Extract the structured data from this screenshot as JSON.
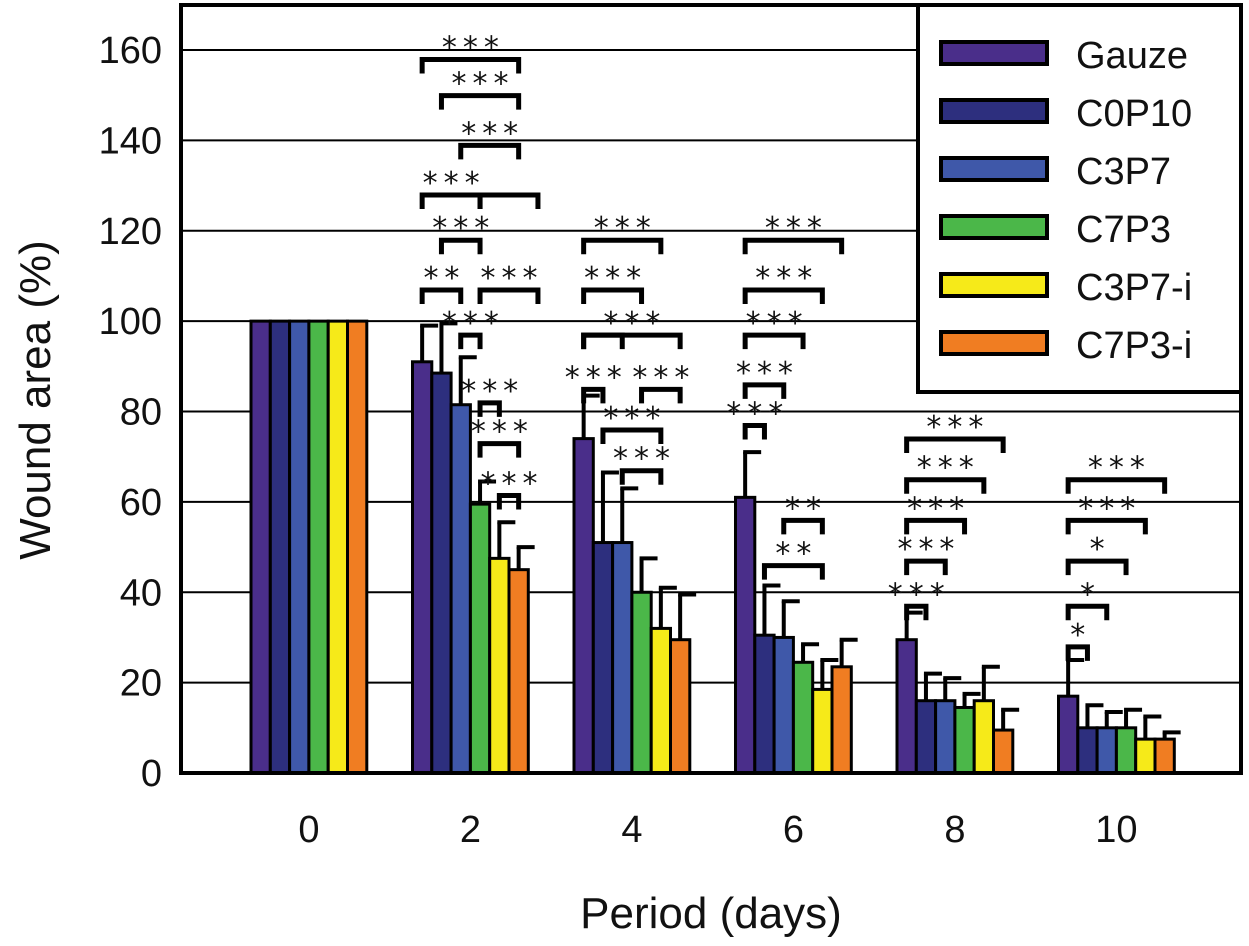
{
  "chart_data": {
    "type": "bar",
    "title": "",
    "xlabel": "Period (days)",
    "ylabel": "Wound area (%)",
    "ylim": [
      0,
      170
    ],
    "yticks": [
      0,
      20,
      40,
      60,
      80,
      100,
      120,
      140,
      160
    ],
    "grid": true,
    "legend_position": "top-right",
    "categories": [
      "0",
      "2",
      "4",
      "6",
      "8",
      "10"
    ],
    "series": [
      {
        "name": "Gauze",
        "color": "#4a2e8a",
        "values": [
          100,
          91,
          74,
          61,
          29.5,
          17
        ],
        "errors": [
          0,
          8,
          9.5,
          10,
          6,
          8
        ]
      },
      {
        "name": "C0P10",
        "color": "#2d2f7e",
        "values": [
          100,
          88.5,
          51,
          30.5,
          16,
          10
        ],
        "errors": [
          0,
          11,
          15.5,
          11,
          6,
          5
        ]
      },
      {
        "name": "C3P7",
        "color": "#3f58a9",
        "values": [
          100,
          81.5,
          51,
          30,
          16,
          10
        ],
        "errors": [
          0,
          10.5,
          12,
          8,
          5,
          3.5
        ]
      },
      {
        "name": "C7P3",
        "color": "#4bb749",
        "values": [
          100,
          59.5,
          40,
          24.5,
          14.5,
          10
        ],
        "errors": [
          0,
          5,
          7.5,
          4,
          3,
          4
        ]
      },
      {
        "name": "C3P7-i",
        "color": "#f6ea19",
        "values": [
          100,
          47.5,
          32,
          18.5,
          16,
          7.5
        ],
        "errors": [
          0,
          8,
          9,
          6.5,
          7.5,
          5
        ]
      },
      {
        "name": "C7P3-i",
        "color": "#f07d22",
        "values": [
          100,
          45,
          29.5,
          23.5,
          9.5,
          7.5
        ],
        "errors": [
          0,
          5,
          10,
          6,
          4.5,
          1.5
        ]
      }
    ],
    "significance": [
      {
        "group": 1,
        "from": 0,
        "to": 5,
        "level": 161,
        "label": "***"
      },
      {
        "group": 1,
        "from": 1,
        "to": 5,
        "level": 153,
        "label": "***"
      },
      {
        "group": 1,
        "from": 2,
        "to": 5,
        "level": 142,
        "label": "***"
      },
      {
        "group": 1,
        "from": 0,
        "to": 3,
        "level": 131,
        "label": "***"
      },
      {
        "group": 1,
        "from": 3,
        "to": 6,
        "level": 131,
        "label": ""
      },
      {
        "group": 1,
        "from": 1,
        "to": 3,
        "level": 121,
        "label": "***"
      },
      {
        "group": 1,
        "from": 0,
        "to": 2,
        "level": 110,
        "label": "**"
      },
      {
        "group": 1,
        "from": 3,
        "to": 6,
        "level": 110,
        "label": "***"
      },
      {
        "group": 1,
        "from": 2,
        "to": 3,
        "level": 100,
        "label": "***"
      },
      {
        "group": 1,
        "from": 3,
        "to": 4,
        "level": 85,
        "label": "***"
      },
      {
        "group": 1,
        "from": 3,
        "to": 5,
        "level": 76,
        "label": "***"
      },
      {
        "group": 1,
        "from": 4,
        "to": 5,
        "level": 64.5,
        "label": "***"
      },
      {
        "group": 2,
        "from": 0,
        "to": 4,
        "level": 121,
        "label": "***"
      },
      {
        "group": 2,
        "from": 0,
        "to": 3,
        "level": 110,
        "label": "***"
      },
      {
        "group": 2,
        "from": 0,
        "to": 5,
        "level": 100,
        "label": "***"
      },
      {
        "group": 2,
        "from": 0,
        "to": 2,
        "level": 100,
        "label": ""
      },
      {
        "group": 2,
        "from": 0,
        "to": 1,
        "level": 88,
        "label": "***"
      },
      {
        "group": 2,
        "from": 3,
        "to": 5,
        "level": 88,
        "label": "***"
      },
      {
        "group": 2,
        "from": 1,
        "to": 4,
        "level": 79,
        "label": "***"
      },
      {
        "group": 2,
        "from": 2,
        "to": 4,
        "level": 70,
        "label": "***"
      },
      {
        "group": 3,
        "from": 0,
        "to": 5,
        "level": 121,
        "label": "***"
      },
      {
        "group": 3,
        "from": 0,
        "to": 4,
        "level": 110,
        "label": "***"
      },
      {
        "group": 3,
        "from": 0,
        "to": 3,
        "level": 100,
        "label": "***"
      },
      {
        "group": 3,
        "from": 0,
        "to": 2,
        "level": 89,
        "label": "***"
      },
      {
        "group": 3,
        "from": 0,
        "to": 1,
        "level": 80,
        "label": "***"
      },
      {
        "group": 3,
        "from": 2,
        "to": 4,
        "level": 59,
        "label": "**"
      },
      {
        "group": 3,
        "from": 1,
        "to": 4,
        "level": 49,
        "label": "**"
      },
      {
        "group": 4,
        "from": 0,
        "to": 5,
        "level": 77,
        "label": "***"
      },
      {
        "group": 4,
        "from": 0,
        "to": 4,
        "level": 68,
        "label": "***"
      },
      {
        "group": 4,
        "from": 0,
        "to": 3,
        "level": 59,
        "label": "***"
      },
      {
        "group": 4,
        "from": 0,
        "to": 2,
        "level": 50,
        "label": "***"
      },
      {
        "group": 4,
        "from": 0,
        "to": 1,
        "level": 40,
        "label": "***"
      },
      {
        "group": 5,
        "from": 0,
        "to": 5,
        "level": 68,
        "label": "***"
      },
      {
        "group": 5,
        "from": 0,
        "to": 4,
        "level": 59,
        "label": "***"
      },
      {
        "group": 5,
        "from": 0,
        "to": 3,
        "level": 50,
        "label": "*"
      },
      {
        "group": 5,
        "from": 0,
        "to": 2,
        "level": 40,
        "label": "*"
      },
      {
        "group": 5,
        "from": 0,
        "to": 1,
        "level": 31,
        "label": "*"
      }
    ]
  }
}
